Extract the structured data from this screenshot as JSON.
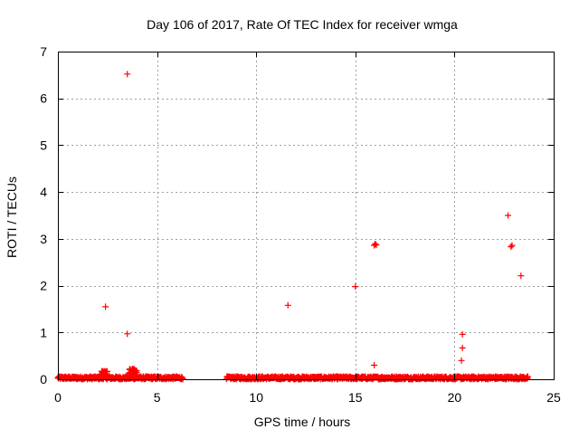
{
  "chart_data": {
    "type": "scatter",
    "title": "Day 106 of 2017, Rate Of TEC Index for receiver wmga",
    "xlabel": "GPS time / hours",
    "ylabel": "ROTI / TECUs",
    "xlim": [
      0,
      25
    ],
    "ylim": [
      0,
      7
    ],
    "xticks": [
      0,
      5,
      10,
      15,
      20,
      25
    ],
    "yticks": [
      0,
      1,
      2,
      3,
      4,
      5,
      6,
      7
    ],
    "grid": true,
    "marker": "+",
    "color": "#ff0000",
    "baseline_segments": [
      {
        "x_start": 0.0,
        "x_end": 6.3,
        "y_min": 0.0,
        "y_max": 0.06
      },
      {
        "x_start": 8.5,
        "x_end": 23.7,
        "y_min": 0.0,
        "y_max": 0.06
      }
    ],
    "bursts": [
      {
        "x_start": 2.1,
        "x_end": 2.5,
        "y_min": 0.05,
        "y_max": 0.18
      },
      {
        "x_start": 3.6,
        "x_end": 4.0,
        "y_min": 0.05,
        "y_max": 0.24
      }
    ],
    "points": [
      {
        "x": 3.5,
        "y": 6.52
      },
      {
        "x": 2.4,
        "y": 1.55
      },
      {
        "x": 3.5,
        "y": 0.97
      },
      {
        "x": 11.6,
        "y": 1.58
      },
      {
        "x": 15.0,
        "y": 1.98
      },
      {
        "x": 15.95,
        "y": 2.86
      },
      {
        "x": 16.0,
        "y": 2.89
      },
      {
        "x": 16.05,
        "y": 2.87
      },
      {
        "x": 15.95,
        "y": 0.3
      },
      {
        "x": 20.4,
        "y": 0.96
      },
      {
        "x": 20.4,
        "y": 0.67
      },
      {
        "x": 20.35,
        "y": 0.4
      },
      {
        "x": 22.7,
        "y": 3.5
      },
      {
        "x": 22.85,
        "y": 2.83
      },
      {
        "x": 22.9,
        "y": 2.86
      },
      {
        "x": 23.35,
        "y": 2.21
      }
    ]
  }
}
